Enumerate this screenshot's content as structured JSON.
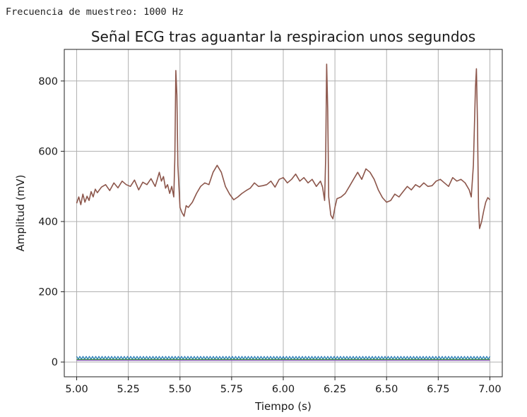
{
  "output": {
    "text": "Frecuencia de muestreo: 1000 Hz"
  },
  "chart_data": {
    "type": "line",
    "title": "Señal ECG tras aguantar la respiracion unos segundos",
    "xlabel": "Tiempo (s)",
    "ylabel": "Amplitud (mV)",
    "xlim": [
      4.94,
      7.06
    ],
    "ylim": [
      -42,
      890
    ],
    "xticks": [
      5.0,
      5.25,
      5.5,
      5.75,
      6.0,
      6.25,
      6.5,
      6.75,
      7.0
    ],
    "xtick_labels": [
      "5.00",
      "5.25",
      "5.50",
      "5.75",
      "6.00",
      "6.25",
      "6.50",
      "6.75",
      "7.00"
    ],
    "yticks": [
      0,
      200,
      400,
      600,
      800
    ],
    "ytick_labels": [
      "0",
      "200",
      "400",
      "600",
      "800"
    ],
    "grid": true,
    "legend": "none",
    "series": [
      {
        "color": "#8c564b",
        "x": [
          5.0,
          5.01,
          5.02,
          5.03,
          5.04,
          5.05,
          5.06,
          5.07,
          5.08,
          5.09,
          5.1,
          5.12,
          5.14,
          5.16,
          5.18,
          5.2,
          5.22,
          5.24,
          5.26,
          5.28,
          5.3,
          5.32,
          5.34,
          5.36,
          5.38,
          5.4,
          5.41,
          5.42,
          5.43,
          5.44,
          5.45,
          5.46,
          5.47,
          5.475,
          5.48,
          5.485,
          5.49,
          5.5,
          5.51,
          5.52,
          5.53,
          5.54,
          5.56,
          5.58,
          5.6,
          5.62,
          5.64,
          5.66,
          5.68,
          5.7,
          5.72,
          5.74,
          5.76,
          5.78,
          5.8,
          5.82,
          5.84,
          5.86,
          5.88,
          5.9,
          5.92,
          5.94,
          5.96,
          5.98,
          6.0,
          6.02,
          6.04,
          6.06,
          6.08,
          6.1,
          6.12,
          6.14,
          6.16,
          6.18,
          6.19,
          6.2,
          6.205,
          6.21,
          6.215,
          6.22,
          6.23,
          6.24,
          6.25,
          6.26,
          6.28,
          6.3,
          6.32,
          6.34,
          6.36,
          6.38,
          6.4,
          6.42,
          6.44,
          6.46,
          6.48,
          6.5,
          6.52,
          6.54,
          6.56,
          6.58,
          6.6,
          6.62,
          6.64,
          6.66,
          6.68,
          6.7,
          6.72,
          6.74,
          6.76,
          6.78,
          6.8,
          6.82,
          6.84,
          6.86,
          6.88,
          6.9,
          6.91,
          6.92,
          6.93,
          6.935,
          6.94,
          6.945,
          6.95,
          6.96,
          6.97,
          6.98,
          6.99,
          7.0
        ],
        "y": [
          452,
          470,
          448,
          478,
          455,
          472,
          460,
          485,
          470,
          492,
          482,
          498,
          505,
          488,
          510,
          496,
          515,
          505,
          500,
          518,
          490,
          512,
          505,
          522,
          500,
          540,
          515,
          528,
          495,
          505,
          480,
          500,
          470,
          580,
          830,
          760,
          560,
          440,
          425,
          415,
          445,
          440,
          455,
          480,
          500,
          510,
          505,
          540,
          560,
          540,
          500,
          478,
          462,
          470,
          480,
          488,
          495,
          510,
          500,
          502,
          505,
          515,
          498,
          520,
          525,
          510,
          520,
          535,
          515,
          525,
          510,
          520,
          500,
          515,
          498,
          460,
          580,
          848,
          720,
          470,
          418,
          408,
          440,
          465,
          470,
          480,
          500,
          520,
          540,
          520,
          550,
          540,
          520,
          490,
          468,
          455,
          460,
          478,
          470,
          485,
          500,
          490,
          505,
          498,
          510,
          500,
          502,
          515,
          520,
          510,
          500,
          525,
          515,
          520,
          510,
          490,
          470,
          560,
          780,
          835,
          680,
          440,
          380,
          400,
          430,
          455,
          468,
          462
        ]
      },
      {
        "color": "#9467bd",
        "x": [
          5.0,
          7.0
        ],
        "y": [
          5,
          5
        ]
      },
      {
        "color": "#2ca02c",
        "x": [
          5.0,
          7.0
        ],
        "y": [
          7,
          7
        ]
      },
      {
        "color": "#1f77b4",
        "x": [
          5.0,
          7.0
        ],
        "y": [
          12,
          12
        ],
        "dense": true,
        "amplitude": 4
      }
    ]
  }
}
